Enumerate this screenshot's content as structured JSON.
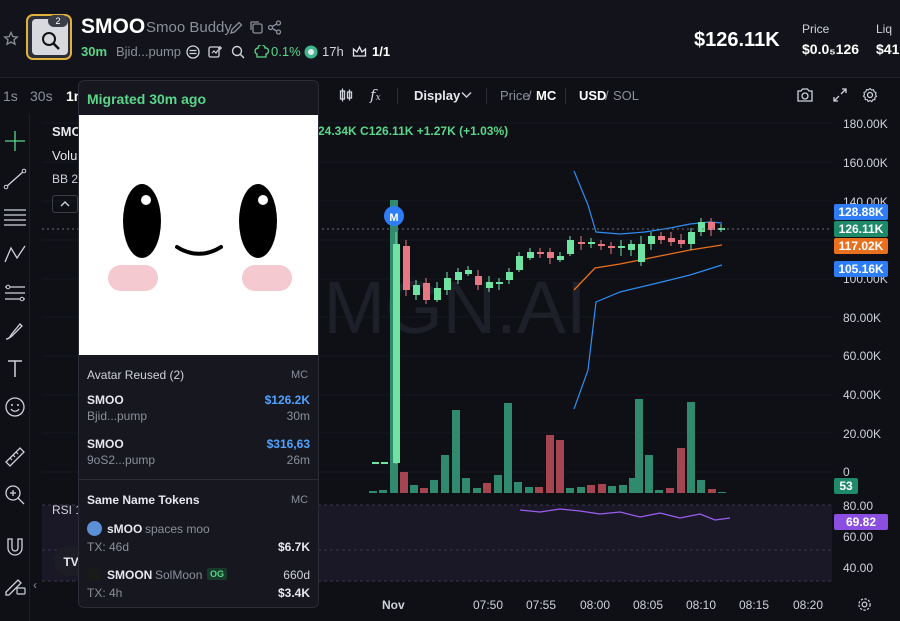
{
  "header": {
    "symbol": "SMOO",
    "name": "Smoo Buddy",
    "avatar_badge": "2",
    "age": "30m",
    "creator": "Bjid...pump",
    "holder_pct": "0.1%",
    "hours": "17h",
    "ratio": "1/1",
    "market_cap": "$126.11K",
    "price_label": "Price",
    "price_value": "$0.0₅126",
    "liq_label": "Liq",
    "liq_value": "$41"
  },
  "toolbar": {
    "timeframes": [
      "1s",
      "30s",
      "1m"
    ],
    "display_label": "Display",
    "price_label": "Price",
    "mc_label": "MC",
    "usd_label": "USD",
    "sol_label": "SOL",
    "separator": "/"
  },
  "chart_overlay": {
    "symbol_partial": "SMO",
    "volume_partial": "Volu",
    "bb_partial": "BB 2",
    "ohlc_partial": "24.34K C126.11K +1.27K (+1.03%)",
    "watermark": "MGN.AI",
    "migration_marker": "M",
    "rsi_label": "RSI 1"
  },
  "y_axis": {
    "price_ticks": [
      "180.00K",
      "160.00K",
      "140.00K",
      "100.00K",
      "80.00K",
      "60.00K",
      "40.00K",
      "20.00K",
      "0"
    ],
    "rsi_ticks": [
      "80.00",
      "60.00",
      "40.00"
    ]
  },
  "price_pills": [
    {
      "label": "128.88K",
      "color": "#2f7df6"
    },
    {
      "label": "126.11K",
      "color": "#1e8a6a"
    },
    {
      "label": "117.02K",
      "color": "#e8701f"
    },
    {
      "label": "105.16K",
      "color": "#2f7df6"
    }
  ],
  "volume_pill": "53",
  "rsi_pill": "69.82",
  "x_axis": [
    "Nov",
    "07:50",
    "07:55",
    "08:00",
    "08:05",
    "08:10",
    "08:15",
    "08:20"
  ],
  "popup": {
    "title": "Migrated 30m ago",
    "avatar_reused_label": "Avatar Reused (2)",
    "mc_header": "MC",
    "reused": [
      {
        "symbol": "SMOO",
        "creator": "Bjid...pump",
        "mc": "$126.2K",
        "age": "30m"
      },
      {
        "symbol": "SMOO",
        "creator": "9oS2...pump",
        "mc": "$316,63",
        "age": "26m"
      }
    ],
    "same_name_label": "Same Name Tokens",
    "same_name": [
      {
        "symbol": "sMOO",
        "name": "spaces moo",
        "tx": "TX: 46d",
        "mc": "$6.7K",
        "age": ""
      },
      {
        "symbol": "SMOON",
        "name": "SolMoon",
        "badge": "OG",
        "tx": "TX: 4h",
        "mc": "$3.4K",
        "age": "660d"
      }
    ]
  },
  "colors": {
    "up": "#5ad68a",
    "down": "#e0525f",
    "up_candle": "#6fe3a2",
    "down_candle": "#e67783",
    "bb_band": "#2f8df0",
    "bb_mid": "#e8701f",
    "rsi_line": "#9a5ff0"
  }
}
